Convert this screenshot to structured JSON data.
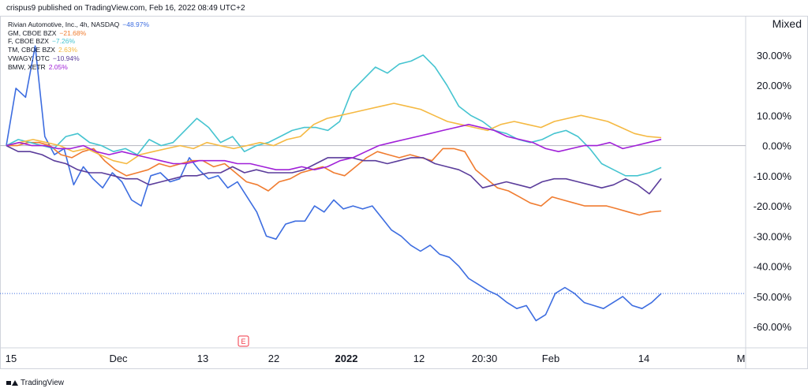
{
  "header": {
    "text": "crispus9 published on TradingView.com, Feb 16, 2022 08:49 UTC+2"
  },
  "mode_label": "Mixed",
  "footer": {
    "brand": "TradingView"
  },
  "earnings_marker": "E",
  "chart_data": {
    "type": "line",
    "x_ticks": [
      "15",
      "Dec",
      "13",
      "22",
      "2022",
      "12",
      "20:30",
      "Feb",
      "14",
      "M"
    ],
    "y_ticks": [
      "30.00%",
      "20.00%",
      "10.00%",
      "0.00%",
      "-10.00%",
      "-20.00%",
      "-30.00%",
      "-40.00%",
      "-50.00%",
      "-60.00%"
    ],
    "ylim": [
      -67,
      43
    ],
    "grid": false,
    "legend_position": "top-left",
    "baseline": 0,
    "series": [
      {
        "name": "Rivian Automotive, Inc., 4h, NASDAQ",
        "label_value": "−48.97%",
        "color": "#3d6de0",
        "values": [
          0,
          19,
          16,
          33,
          3,
          -3,
          -1,
          -13,
          -7,
          -11,
          -14,
          -9,
          -12,
          -18,
          -20,
          -10,
          -9,
          -12,
          -11,
          -4,
          -8,
          -11,
          -10,
          -14,
          -12,
          -17,
          -22,
          -30,
          -31,
          -26,
          -25,
          -25,
          -20,
          -22,
          -18,
          -21,
          -20,
          -21,
          -20,
          -24,
          -28,
          -30,
          -33,
          -35,
          -33,
          -36,
          -37,
          -40,
          -44,
          -46,
          -48,
          -49.5,
          -52,
          -54,
          -53,
          -58,
          -56,
          -49,
          -47,
          -49,
          -52,
          -53,
          -54,
          -52,
          -50,
          -53,
          -54,
          -52,
          -49
        ]
      },
      {
        "name": "GM, CBOE BZX",
        "label_value": "−21.68%",
        "color": "#f07c30",
        "values": [
          0,
          0,
          1,
          1,
          0,
          -3,
          -4,
          -2,
          -1,
          -5,
          -8,
          -10,
          -9,
          -8,
          -6,
          -7,
          -6,
          -5,
          -5,
          -7,
          -6,
          -9,
          -12,
          -13,
          -15,
          -12,
          -11,
          -9,
          -8,
          -7,
          -9,
          -10,
          -7,
          -4,
          -2,
          -3,
          -4,
          -3,
          -4,
          -5,
          -1,
          -1,
          -2,
          -8,
          -11,
          -14,
          -15,
          -17,
          -19,
          -20,
          -17,
          -18,
          -19,
          -20,
          -20,
          -20,
          -21,
          -22,
          -23,
          -22,
          -21.68
        ]
      },
      {
        "name": "F, CBOE BZX",
        "label_value": "−7.26%",
        "color": "#45c4d0",
        "values": [
          0,
          2,
          1,
          0,
          -1,
          3,
          4,
          1,
          0,
          -2,
          -1,
          -3,
          2,
          0,
          1,
          5,
          9,
          6,
          1,
          3,
          -2,
          0,
          1,
          3,
          5,
          6,
          6,
          5,
          8,
          18,
          22,
          26,
          24,
          27,
          28,
          30,
          26,
          20,
          13,
          10,
          8,
          5,
          4,
          2,
          1,
          2,
          4,
          5,
          3,
          -1,
          -6,
          -8,
          -10,
          -10,
          -9,
          -7.26
        ]
      },
      {
        "name": "TM, CBOE BZX",
        "label_value": "2.63%",
        "color": "#f5b942",
        "values": [
          0,
          1,
          2,
          1,
          0,
          -2,
          -1,
          -3,
          -5,
          -6,
          -3,
          -2,
          -1,
          0,
          -1,
          1,
          0,
          -1,
          0,
          1,
          0,
          2,
          3,
          7,
          9,
          10,
          11,
          12,
          13,
          14,
          13,
          12,
          10,
          8,
          7,
          6,
          5,
          7,
          8,
          7,
          6,
          8,
          9,
          10,
          9,
          8,
          6,
          4,
          3,
          2.63
        ]
      },
      {
        "name": "VWAGY, OTC",
        "label_value": "−10.94%",
        "color": "#5b3d9b",
        "values": [
          0,
          -2,
          -2,
          -3,
          -5,
          -6,
          -8,
          -9,
          -9,
          -10,
          -11,
          -11,
          -13,
          -12,
          -11,
          -10,
          -10,
          -9,
          -9,
          -7,
          -9,
          -8,
          -9,
          -9,
          -9,
          -8,
          -6,
          -4,
          -4,
          -4,
          -5,
          -5,
          -6,
          -5,
          -4,
          -4,
          -6,
          -7,
          -8,
          -10,
          -14,
          -13,
          -12,
          -13,
          -14,
          -12,
          -11,
          -11,
          -12,
          -13,
          -14,
          -13,
          -11,
          -13,
          -16,
          -10.94
        ]
      },
      {
        "name": "BMW, XETR",
        "label_value": "2.05%",
        "color": "#a020d8",
        "values": [
          0,
          1,
          0,
          0,
          -1,
          -1,
          0,
          -2,
          -3,
          -2,
          -3,
          -4,
          -5,
          -6,
          -6,
          -5,
          -5,
          -5,
          -6,
          -6,
          -7,
          -8,
          -8,
          -7,
          -8,
          -7,
          -5,
          -4,
          -2,
          0,
          1,
          2,
          3,
          4,
          5,
          6,
          7,
          6,
          5,
          3,
          2,
          1,
          -1,
          -2,
          -1,
          0,
          0,
          1,
          -1,
          0,
          1,
          2.05
        ]
      }
    ]
  }
}
